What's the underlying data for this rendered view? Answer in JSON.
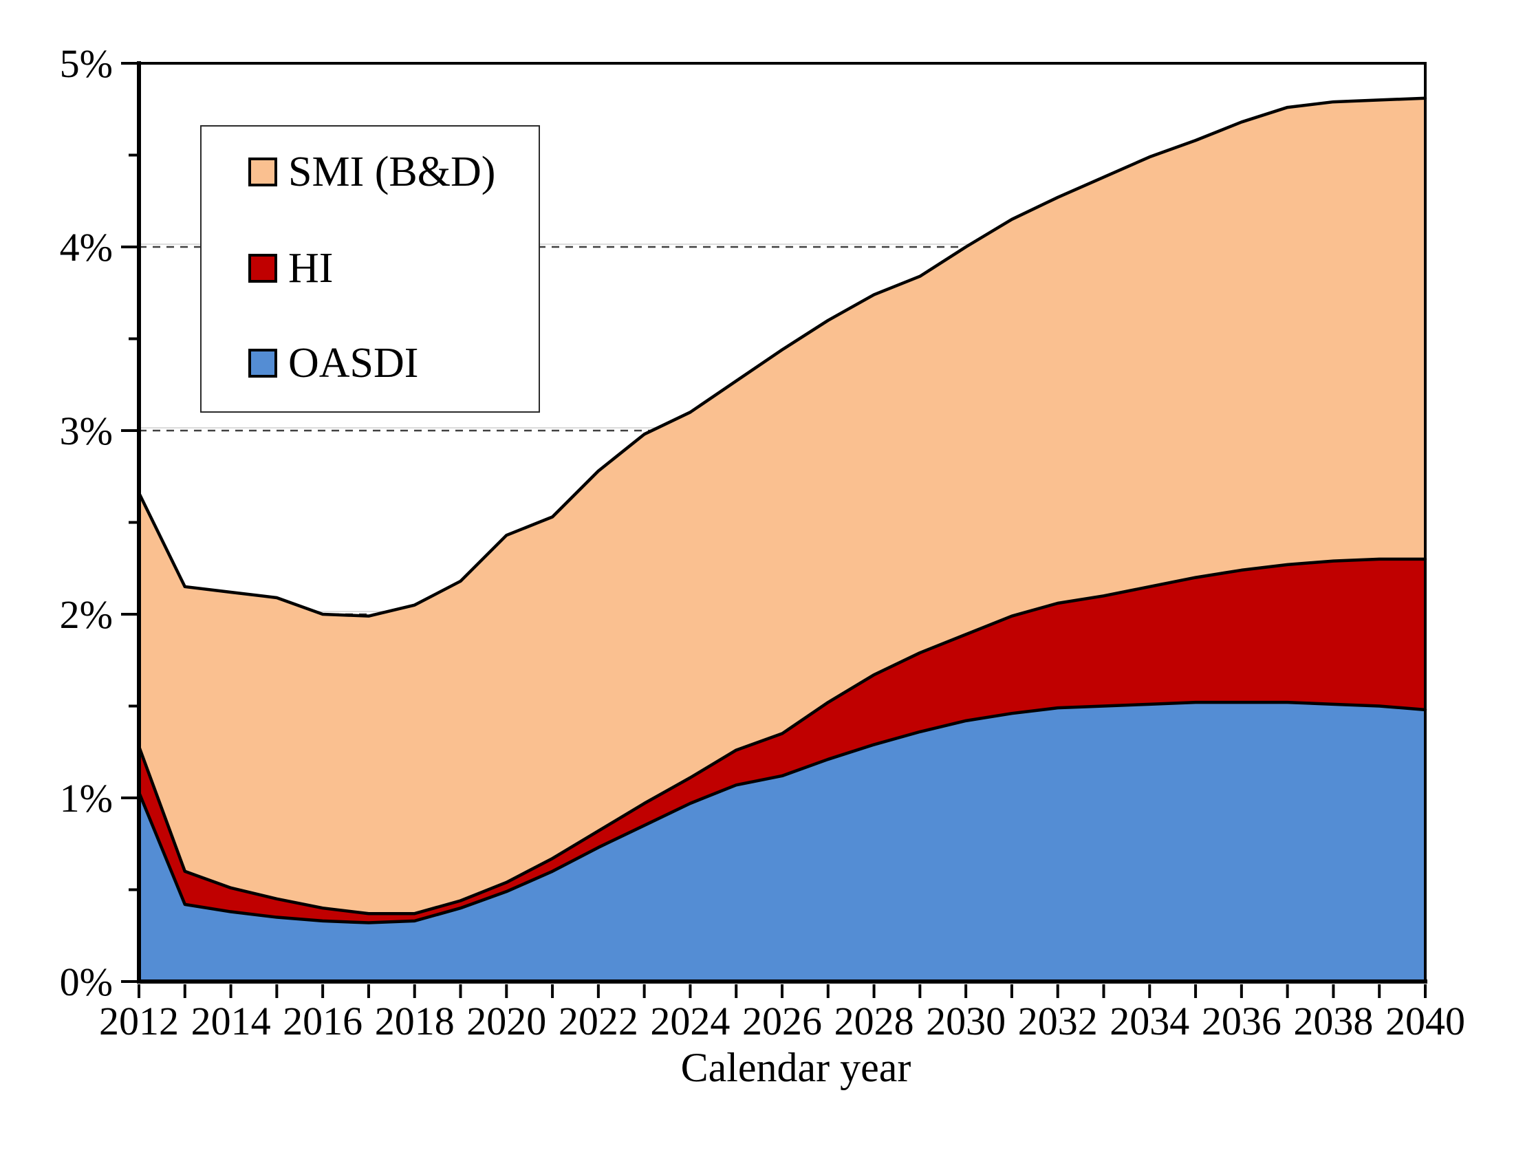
{
  "chart_data": {
    "type": "area",
    "stacked": true,
    "title": "",
    "xlabel": "Calendar year",
    "ylabel": "",
    "ylim": [
      0,
      5
    ],
    "ytick_values": [
      0,
      1,
      2,
      3,
      4,
      5
    ],
    "ytick_labels": [
      "0%",
      "1%",
      "2%",
      "3%",
      "4%",
      "5%"
    ],
    "ytick_minor_values": [
      0.5,
      1.5,
      2.5,
      3.5,
      4.5
    ],
    "gridline_values": [
      1,
      2,
      3,
      4
    ],
    "grid_style": "dashed horizontal, hidden behind filled areas",
    "x": [
      2012,
      2013,
      2014,
      2015,
      2016,
      2017,
      2018,
      2019,
      2020,
      2021,
      2022,
      2023,
      2024,
      2025,
      2026,
      2027,
      2028,
      2029,
      2030,
      2031,
      2032,
      2033,
      2034,
      2035,
      2036,
      2037,
      2038,
      2039,
      2040
    ],
    "xtick_labeled": [
      2012,
      2014,
      2016,
      2018,
      2020,
      2022,
      2024,
      2026,
      2028,
      2030,
      2032,
      2034,
      2036,
      2038,
      2040
    ],
    "series": [
      {
        "name": "OASDI",
        "color": "#548DD4",
        "values": [
          1.03,
          0.42,
          0.38,
          0.35,
          0.33,
          0.32,
          0.33,
          0.4,
          0.49,
          0.6,
          0.73,
          0.85,
          0.97,
          1.07,
          1.12,
          1.21,
          1.29,
          1.36,
          1.42,
          1.46,
          1.49,
          1.5,
          1.51,
          1.52,
          1.52,
          1.52,
          1.51,
          1.5,
          1.48
        ]
      },
      {
        "name": "HI",
        "color": "#C00000",
        "values": [
          0.25,
          0.18,
          0.13,
          0.1,
          0.07,
          0.05,
          0.04,
          0.04,
          0.05,
          0.07,
          0.09,
          0.12,
          0.14,
          0.19,
          0.23,
          0.31,
          0.38,
          0.43,
          0.47,
          0.53,
          0.57,
          0.6,
          0.64,
          0.68,
          0.72,
          0.75,
          0.78,
          0.8,
          0.82
        ]
      },
      {
        "name": "SMI (B&D)",
        "color": "#FAC090",
        "values": [
          1.38,
          1.55,
          1.61,
          1.64,
          1.6,
          1.62,
          1.68,
          1.74,
          1.89,
          1.86,
          1.96,
          2.01,
          1.99,
          2.01,
          2.09,
          2.08,
          2.07,
          2.05,
          2.11,
          2.16,
          2.21,
          2.28,
          2.34,
          2.38,
          2.44,
          2.49,
          2.5,
          2.5,
          2.51
        ]
      }
    ],
    "legend": {
      "position": "top-left",
      "items": [
        {
          "label": "SMI (B&D)",
          "color": "#FAC090"
        },
        {
          "label": "HI",
          "color": "#C00000"
        },
        {
          "label": "OASDI",
          "color": "#548DD4"
        }
      ]
    },
    "line_color": "#000000",
    "gridline_dash_color": "#404040",
    "gridline_light_color": "#DCDCDC"
  }
}
